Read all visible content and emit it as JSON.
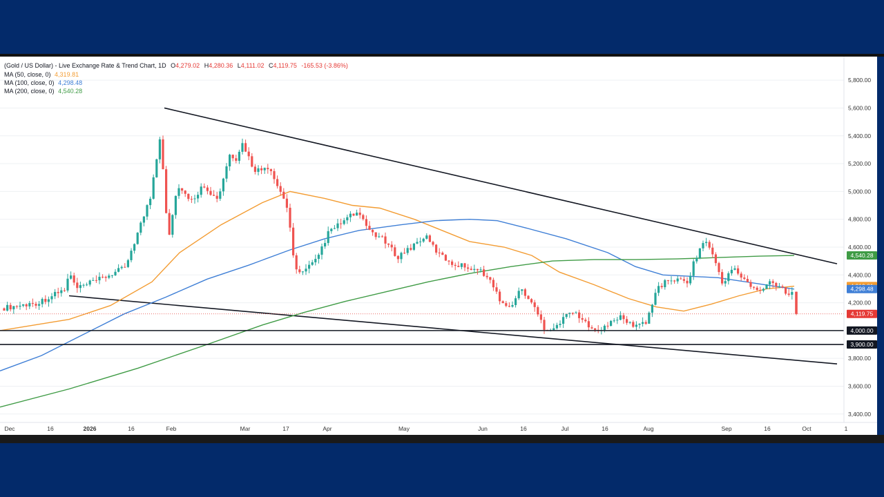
{
  "chart_data": {
    "type": "candlestick",
    "header": {
      "symbol_line": "(Gold / US Dollar) - Live Exchange Rate & Trend Chart, 1D",
      "open_label": "O",
      "open": "4,279.02",
      "high_label": "H",
      "high": "4,280.36",
      "low_label": "L",
      "low": "4,111.02",
      "close_label": "C",
      "close": "4,119.75",
      "change": "-165.53 (-3.86%)"
    },
    "moving_averages": [
      {
        "label": "MA (50, close, 0)",
        "value": "4,319.81",
        "color": "#f39c32"
      },
      {
        "label": "MA (100, close, 0)",
        "value": "4,298.48",
        "color": "#3f7fd6"
      },
      {
        "label": "MA (200, close, 0)",
        "value": "4,540.28",
        "color": "#3f9b45"
      }
    ],
    "ylim": [
      3250,
      5900
    ],
    "y_ticks": [
      "5,800.00",
      "5,600.00",
      "5,400.00",
      "5,200.00",
      "5,000.00",
      "4,800.00",
      "4,600.00",
      "4,400.00",
      "4,200.00",
      "4,000.00",
      "3,800.00",
      "3,600.00",
      "3,400.00"
    ],
    "x_ticks": [
      "Dec",
      "16",
      "2026",
      "16",
      "Feb",
      "Mar",
      "17",
      "Apr",
      "May",
      "Jun",
      "16",
      "Jul",
      "16",
      "Aug",
      "Sep",
      "16",
      "Oct",
      "1"
    ],
    "price_labels": [
      {
        "text": "4,540.28",
        "value": 4540.28,
        "color": "#3f9b45"
      },
      {
        "text": "4,319.81",
        "value": 4319.81,
        "color": "#f39c32"
      },
      {
        "text": "4,298.48",
        "value": 4298.48,
        "color": "#3f7fd6"
      },
      {
        "text": "4,119.75",
        "value": 4119.75,
        "color": "#e53935"
      },
      {
        "text": "4,000.00",
        "value": 4000,
        "color": "#131722"
      },
      {
        "text": "3,900.00",
        "value": 3900,
        "color": "#131722"
      }
    ],
    "horizontal_levels": [
      4000,
      3900
    ],
    "current_price": 4119.75,
    "colors": {
      "up": "#26a69a",
      "down": "#ef5350",
      "trend": "#131722",
      "grid": "#eef0f3",
      "axis_text": "#333"
    }
  }
}
